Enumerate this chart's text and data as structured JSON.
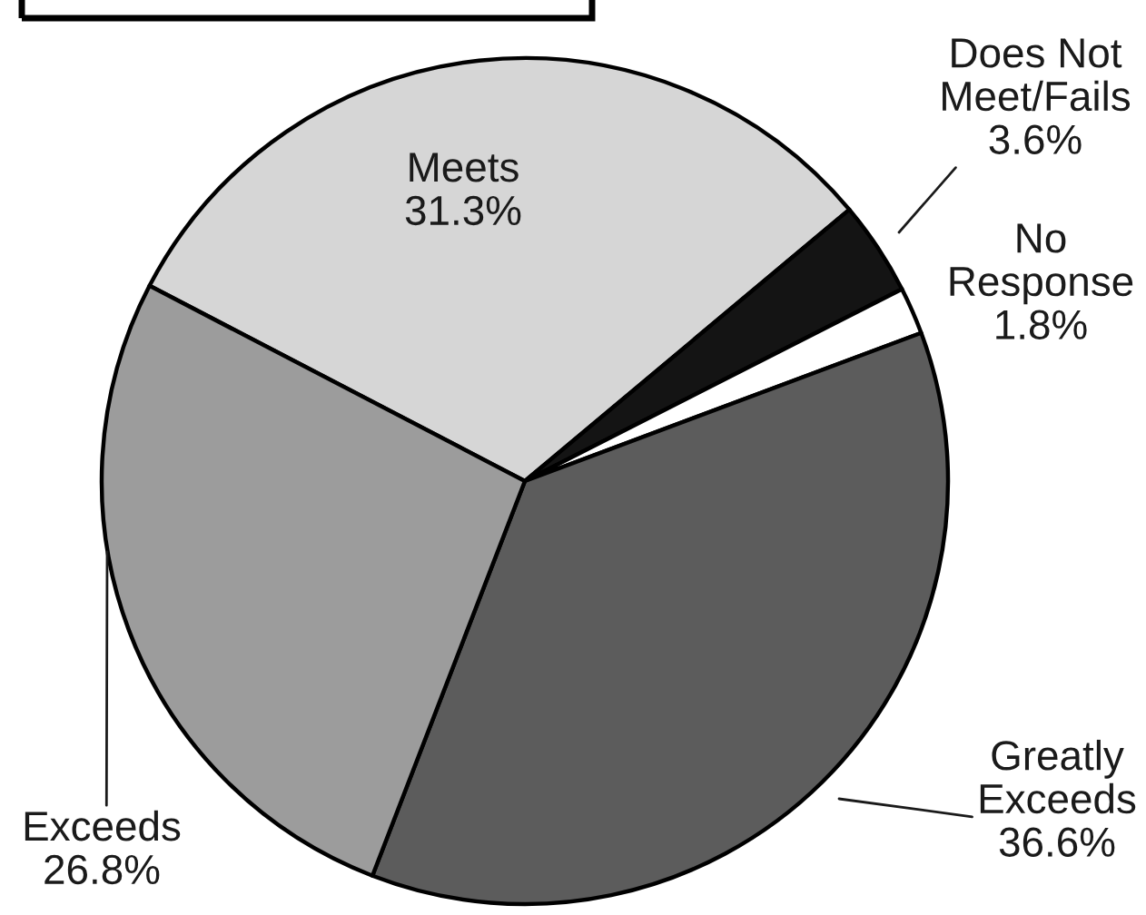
{
  "chart_data": {
    "type": "pie",
    "categories": [
      "Meets",
      "Does Not\nMeet/Fails",
      "No\nResponse",
      "Greatly\nExceeds",
      "Exceeds"
    ],
    "values": [
      31.3,
      3.6,
      1.8,
      36.6,
      26.8
    ],
    "value_labels": [
      "31.3%",
      "3.6%",
      "1.8%",
      "36.6%",
      "26.8%"
    ],
    "colors": [
      "#d6d6d6",
      "#141414",
      "#ffffff",
      "#5c5c5c",
      "#9c9c9c"
    ]
  }
}
